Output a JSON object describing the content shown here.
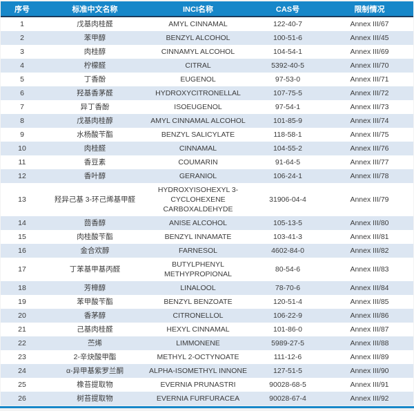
{
  "table": {
    "columns": [
      "序号",
      "标准中文名称",
      "INCI名称",
      "CAS号",
      "限制情况"
    ],
    "rows": [
      [
        "1",
        "戊基肉桂醛",
        "AMYL CINNAMAL",
        "122-40-7",
        "Annex III/67"
      ],
      [
        "2",
        "苯甲醇",
        "BENZYL ALCOHOL",
        "100-51-6",
        "Annex III/45"
      ],
      [
        "3",
        "肉桂醇",
        "CINNAMYL ALCOHOL",
        "104-54-1",
        "Annex III/69"
      ],
      [
        "4",
        "柠檬醛",
        "CITRAL",
        "5392-40-5",
        "Annex III/70"
      ],
      [
        "5",
        "丁香酚",
        "EUGENOL",
        "97-53-0",
        "Annex III/71"
      ],
      [
        "6",
        "羟基香茅醛",
        "HYDROXYCITRONELLAL",
        "107-75-5",
        "Annex III/72"
      ],
      [
        "7",
        "异丁香酚",
        "ISOEUGENOL",
        "97-54-1",
        "Annex III/73"
      ],
      [
        "8",
        "戊基肉桂醇",
        "AMYL CINNAMAL ALCOHOL",
        "101-85-9",
        "Annex III/74"
      ],
      [
        "9",
        "水杨酸苄酯",
        "BENZYL SALICYLATE",
        "118-58-1",
        "Annex III/75"
      ],
      [
        "10",
        "肉桂醛",
        "CINNAMAL",
        "104-55-2",
        "Annex III/76"
      ],
      [
        "11",
        "香豆素",
        "COUMARIN",
        "91-64-5",
        "Annex III/77"
      ],
      [
        "12",
        "香叶醇",
        "GERANIOL",
        "106-24-1",
        "Annex III/78"
      ],
      [
        "13",
        "羟异己基 3-环己烯基甲醛",
        "HYDROXYISOHEXYL 3-CYCLOHEXENE CARBOXALDEHYDE",
        "31906-04-4",
        "Annex III/79"
      ],
      [
        "14",
        "茴香醇",
        "ANISE ALCOHOL",
        "105-13-5",
        "Annex III/80"
      ],
      [
        "15",
        "肉桂酸苄酯",
        "BENZYL INNAMATE",
        "103-41-3",
        "Annex III/81"
      ],
      [
        "16",
        "金合欢醇",
        "FARNESOL",
        "4602-84-0",
        "Annex III/82"
      ],
      [
        "17",
        "丁苯基甲基丙醛",
        "BUTYLPHENYL METHYPROPIONAL",
        "80-54-6",
        "Annex III/83"
      ],
      [
        "18",
        "芳樟醇",
        "LINALOOL",
        "78-70-6",
        "Annex III/84"
      ],
      [
        "19",
        "苯甲酸苄酯",
        "BENZYL BENZOATE",
        "120-51-4",
        "Annex III/85"
      ],
      [
        "20",
        "香茅醇",
        "CITRONELLOL",
        "106-22-9",
        "Annex III/86"
      ],
      [
        "21",
        "己基肉桂醛",
        "HEXYL CINNAMAL",
        "101-86-0",
        "Annex III/87"
      ],
      [
        "22",
        "苎烯",
        "LIMMONENE",
        "5989-27-5",
        "Annex III/88"
      ],
      [
        "23",
        "2-辛炔酸甲酯",
        "METHYL 2-OCTYNOATE",
        "111-12-6",
        "Annex III/89"
      ],
      [
        "24",
        "α-异甲基紫罗兰酮",
        "ALPHA-ISOMETHYL INNONE",
        "127-51-5",
        "Annex III/90"
      ],
      [
        "25",
        "橡苔提取物",
        "EVERNIA PRUNASTRI",
        "90028-68-5",
        "Annex III/91"
      ],
      [
        "26",
        "树苔提取物",
        "EVERNIA FURFURACEA",
        "90028-67-4",
        "Annex III/92"
      ]
    ]
  },
  "colors": {
    "header_bg": "#1787c9",
    "header_text": "#ffffff",
    "header_divider": "#1b3a5c",
    "row_bg": "#ffffff",
    "row_alt_bg": "#dce6f2",
    "body_text": "#3b3b3b",
    "bottom_bar": "#1787c9"
  },
  "chart_data": {
    "type": "table",
    "title": "",
    "columns": [
      "序号",
      "标准中文名称",
      "INCI名称",
      "CAS号",
      "限制情况"
    ],
    "rows": [
      [
        "1",
        "戊基肉桂醛",
        "AMYL CINNAMAL",
        "122-40-7",
        "Annex III/67"
      ],
      [
        "2",
        "苯甲醇",
        "BENZYL ALCOHOL",
        "100-51-6",
        "Annex III/45"
      ],
      [
        "3",
        "肉桂醇",
        "CINNAMYL ALCOHOL",
        "104-54-1",
        "Annex III/69"
      ],
      [
        "4",
        "柠檬醛",
        "CITRAL",
        "5392-40-5",
        "Annex III/70"
      ],
      [
        "5",
        "丁香酚",
        "EUGENOL",
        "97-53-0",
        "Annex III/71"
      ],
      [
        "6",
        "羟基香茅醛",
        "HYDROXYCITRONELLAL",
        "107-75-5",
        "Annex III/72"
      ],
      [
        "7",
        "异丁香酚",
        "ISOEUGENOL",
        "97-54-1",
        "Annex III/73"
      ],
      [
        "8",
        "戊基肉桂醇",
        "AMYL CINNAMAL ALCOHOL",
        "101-85-9",
        "Annex III/74"
      ],
      [
        "9",
        "水杨酸苄酯",
        "BENZYL SALICYLATE",
        "118-58-1",
        "Annex III/75"
      ],
      [
        "10",
        "肉桂醛",
        "CINNAMAL",
        "104-55-2",
        "Annex III/76"
      ],
      [
        "11",
        "香豆素",
        "COUMARIN",
        "91-64-5",
        "Annex III/77"
      ],
      [
        "12",
        "香叶醇",
        "GERANIOL",
        "106-24-1",
        "Annex III/78"
      ],
      [
        "13",
        "羟异己基 3-环己烯基甲醛",
        "HYDROXYISOHEXYL 3-CYCLOHEXENE CARBOXALDEHYDE",
        "31906-04-4",
        "Annex III/79"
      ],
      [
        "14",
        "茴香醇",
        "ANISE ALCOHOL",
        "105-13-5",
        "Annex III/80"
      ],
      [
        "15",
        "肉桂酸苄酯",
        "BENZYL INNAMATE",
        "103-41-3",
        "Annex III/81"
      ],
      [
        "16",
        "金合欢醇",
        "FARNESOL",
        "4602-84-0",
        "Annex III/82"
      ],
      [
        "17",
        "丁苯基甲基丙醛",
        "BUTYLPHENYL METHYPROPIONAL",
        "80-54-6",
        "Annex III/83"
      ],
      [
        "18",
        "芳樟醇",
        "LINALOOL",
        "78-70-6",
        "Annex III/84"
      ],
      [
        "19",
        "苯甲酸苄酯",
        "BENZYL BENZOATE",
        "120-51-4",
        "Annex III/85"
      ],
      [
        "20",
        "香茅醇",
        "CITRONELLOL",
        "106-22-9",
        "Annex III/86"
      ],
      [
        "21",
        "己基肉桂醛",
        "HEXYL CINNAMAL",
        "101-86-0",
        "Annex III/87"
      ],
      [
        "22",
        "苎烯",
        "LIMMONENE",
        "5989-27-5",
        "Annex III/88"
      ],
      [
        "23",
        "2-辛炔酸甲酯",
        "METHYL 2-OCTYNOATE",
        "111-12-6",
        "Annex III/89"
      ],
      [
        "24",
        "α-异甲基紫罗兰酮",
        "ALPHA-ISOMETHYL INNONE",
        "127-51-5",
        "Annex III/90"
      ],
      [
        "25",
        "橡苔提取物",
        "EVERNIA PRUNASTRI",
        "90028-68-5",
        "Annex III/91"
      ],
      [
        "26",
        "树苔提取物",
        "EVERNIA FURFURACEA",
        "90028-67-4",
        "Annex III/92"
      ]
    ]
  }
}
